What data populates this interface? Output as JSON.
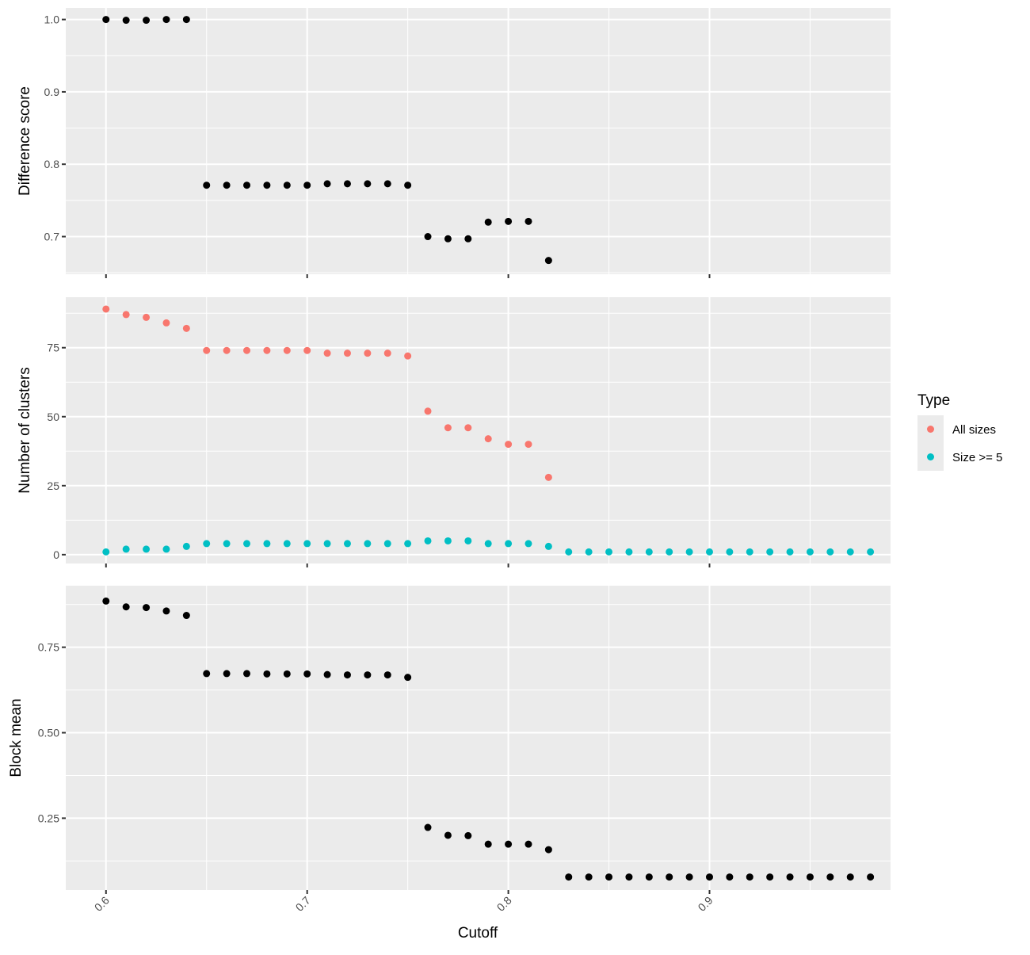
{
  "chart_data": {
    "type": "scatter",
    "xlabel": "Cutoff",
    "x_ticks": [
      "0.6",
      "0.7",
      "0.8",
      "0.9"
    ],
    "x_range": [
      0.58,
      0.99
    ],
    "grid": true,
    "legend": {
      "title": "Type",
      "placement": "right",
      "entries": [
        {
          "label": "All sizes",
          "color": "#F8766D"
        },
        {
          "label": "Size >= 5",
          "color": "#00BFC4"
        }
      ]
    },
    "panels": [
      {
        "ylabel": "Difference score",
        "y_ticks": [
          "0.7",
          "0.8",
          "0.9",
          "1.0"
        ],
        "y_range": [
          0.648,
          1.016
        ],
        "series": [
          {
            "color": "#000000",
            "x": [
              0.6,
              0.61,
              0.62,
              0.63,
              0.64,
              0.65,
              0.66,
              0.67,
              0.68,
              0.69,
              0.7,
              0.71,
              0.72,
              0.73,
              0.74,
              0.75,
              0.76,
              0.77,
              0.78,
              0.79,
              0.8,
              0.81,
              0.82
            ],
            "y": [
              1.0,
              0.999,
              0.999,
              1.0,
              1.0,
              0.771,
              0.771,
              0.771,
              0.771,
              0.771,
              0.771,
              0.773,
              0.773,
              0.773,
              0.773,
              0.771,
              0.7,
              0.697,
              0.697,
              0.72,
              0.721,
              0.721,
              0.667
            ]
          }
        ]
      },
      {
        "ylabel": "Number of clusters",
        "y_ticks": [
          "0",
          "25",
          "50",
          "75"
        ],
        "y_range": [
          -3.2,
          93.3
        ],
        "series": [
          {
            "name": "All sizes",
            "color": "#F8766D",
            "x": [
              0.6,
              0.61,
              0.62,
              0.63,
              0.64,
              0.65,
              0.66,
              0.67,
              0.68,
              0.69,
              0.7,
              0.71,
              0.72,
              0.73,
              0.74,
              0.75,
              0.76,
              0.77,
              0.78,
              0.79,
              0.8,
              0.81,
              0.82
            ],
            "y": [
              89,
              87,
              86,
              84,
              82,
              74,
              74,
              74,
              74,
              74,
              74,
              73,
              73,
              73,
              73,
              72,
              52,
              46,
              46,
              42,
              40,
              40,
              28
            ]
          },
          {
            "name": "Size >= 5",
            "color": "#00BFC4",
            "x": [
              0.6,
              0.61,
              0.62,
              0.63,
              0.64,
              0.65,
              0.66,
              0.67,
              0.68,
              0.69,
              0.7,
              0.71,
              0.72,
              0.73,
              0.74,
              0.75,
              0.76,
              0.77,
              0.78,
              0.79,
              0.8,
              0.81,
              0.82,
              0.83,
              0.84,
              0.85,
              0.86,
              0.87,
              0.88,
              0.89,
              0.9,
              0.91,
              0.92,
              0.93,
              0.94,
              0.95,
              0.96,
              0.97,
              0.98
            ],
            "y": [
              1,
              2,
              2,
              2,
              3,
              4,
              4,
              4,
              4,
              4,
              4,
              4,
              4,
              4,
              4,
              4,
              5,
              5,
              5,
              4,
              4,
              4,
              3,
              1,
              1,
              1,
              1,
              1,
              1,
              1,
              1,
              1,
              1,
              1,
              1,
              1,
              1,
              1,
              1
            ]
          }
        ]
      },
      {
        "ylabel": "Block mean",
        "y_ticks": [
          "0.25",
          "0.50",
          "0.75"
        ],
        "y_range": [
          0.04,
          0.93
        ],
        "series": [
          {
            "color": "#000000",
            "x": [
              0.6,
              0.61,
              0.62,
              0.63,
              0.64,
              0.65,
              0.66,
              0.67,
              0.68,
              0.69,
              0.7,
              0.71,
              0.72,
              0.73,
              0.74,
              0.75,
              0.76,
              0.77,
              0.78,
              0.79,
              0.8,
              0.81,
              0.82,
              0.83,
              0.84,
              0.85,
              0.86,
              0.87,
              0.88,
              0.89,
              0.9,
              0.91,
              0.92,
              0.93,
              0.94,
              0.95,
              0.96,
              0.97,
              0.98
            ],
            "y": [
              0.885,
              0.868,
              0.866,
              0.856,
              0.843,
              0.673,
              0.673,
              0.673,
              0.672,
              0.672,
              0.672,
              0.67,
              0.669,
              0.669,
              0.669,
              0.662,
              0.223,
              0.2,
              0.199,
              0.174,
              0.174,
              0.174,
              0.158,
              0.078,
              0.078,
              0.078,
              0.078,
              0.078,
              0.078,
              0.078,
              0.078,
              0.078,
              0.078,
              0.078,
              0.078,
              0.078,
              0.078,
              0.078,
              0.078
            ]
          }
        ]
      }
    ]
  }
}
